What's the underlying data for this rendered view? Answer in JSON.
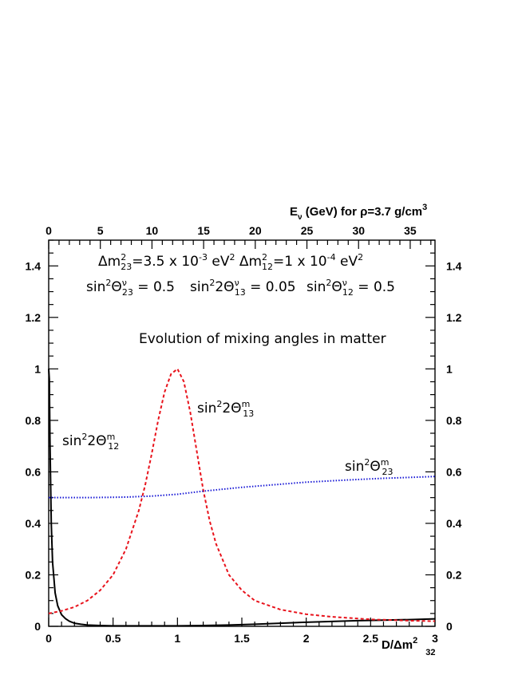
{
  "chart_data": {
    "type": "line",
    "xlabel": "D/Δm",
    "xlabel_sup": "2",
    "xlabel_sub": "32",
    "top_axis_label": "E",
    "top_axis_label_sub": "ν",
    "top_axis_label_rest": " (GeV) for ρ=3.7 g/cm",
    "top_axis_label_sup": "3",
    "xlim": [
      0,
      3
    ],
    "ylim": [
      0,
      1.5
    ],
    "top_xlim": [
      0,
      37.4
    ],
    "x_ticks": [
      "0",
      "0.5",
      "1",
      "1.5",
      "2",
      "2.5",
      "3"
    ],
    "y_ticks": [
      "0",
      "0.2",
      "0.4",
      "0.6",
      "0.8",
      "1",
      "1.2",
      "1.4"
    ],
    "top_ticks": [
      "0",
      "5",
      "10",
      "15",
      "20",
      "25",
      "30",
      "35"
    ],
    "grid": false,
    "annotations": {
      "params_line1": {
        "a": "Δm",
        "a_sup": "2",
        "a_sub": "23",
        "b": "=3.5 x 10",
        "b_sup": "-3",
        "c": " eV",
        "c_sup": "2",
        "d": " Δm",
        "d_sup": "2",
        "d_sub": "12",
        "e": "=1 x 10",
        "e_sup": "-4",
        "f": " eV",
        "f_sup": "2"
      },
      "params_line2": [
        {
          "pre": "sin",
          "sup": "2",
          "mid": "Θ",
          "msup": "ν",
          "msub": "23",
          "post": " = 0.5"
        },
        {
          "pre": "sin",
          "sup": "2",
          "mid": "2Θ",
          "msup": "ν",
          "msub": "13",
          "post": " = 0.05"
        },
        {
          "pre": "sin",
          "sup": "2",
          "mid": "Θ",
          "msup": "ν",
          "msub": "12",
          "post": " = 0.5"
        }
      ],
      "subtitle": "Evolution of mixing angles in matter"
    },
    "series": [
      {
        "name_pre": "sin",
        "name_sup": "2",
        "name_mid": "2Θ",
        "name_msup": "m",
        "name_msub": "12",
        "color": "#000000",
        "dash": "solid",
        "x": [
          0,
          0.005,
          0.01,
          0.02,
          0.03,
          0.05,
          0.07,
          0.1,
          0.13,
          0.16,
          0.2,
          0.25,
          0.3,
          0.4,
          0.5,
          0.6,
          0.8,
          1.0,
          1.2,
          1.4,
          1.6,
          1.8,
          2.0,
          2.2,
          2.4,
          2.6,
          2.8,
          3.0
        ],
        "values": [
          1.0,
          0.96,
          0.72,
          0.4,
          0.25,
          0.13,
          0.08,
          0.045,
          0.03,
          0.02,
          0.012,
          0.008,
          0.005,
          0.003,
          0.002,
          0.002,
          0.002,
          0.002,
          0.003,
          0.005,
          0.008,
          0.012,
          0.016,
          0.019,
          0.022,
          0.024,
          0.026,
          0.029
        ]
      },
      {
        "name_pre": "sin",
        "name_sup": "2",
        "name_mid": "2Θ",
        "name_msup": "m",
        "name_msub": "13",
        "color": "#e8131c",
        "dash": "dashed",
        "x": [
          0,
          0.1,
          0.2,
          0.3,
          0.4,
          0.5,
          0.6,
          0.7,
          0.75,
          0.8,
          0.85,
          0.9,
          0.95,
          1.0,
          1.05,
          1.1,
          1.15,
          1.2,
          1.25,
          1.3,
          1.4,
          1.5,
          1.6,
          1.8,
          2.0,
          2.2,
          2.5,
          2.8,
          3.0
        ],
        "values": [
          0.05,
          0.06,
          0.075,
          0.1,
          0.14,
          0.2,
          0.3,
          0.45,
          0.55,
          0.67,
          0.8,
          0.91,
          0.98,
          1.0,
          0.95,
          0.83,
          0.68,
          0.53,
          0.41,
          0.32,
          0.2,
          0.14,
          0.1,
          0.065,
          0.047,
          0.037,
          0.027,
          0.022,
          0.02
        ]
      },
      {
        "name_pre": "sin",
        "name_sup": "2",
        "name_mid": "Θ",
        "name_msup": "m",
        "name_msub": "23",
        "color": "#1b1bd6",
        "dash": "dotted",
        "x": [
          0,
          0.3,
          0.6,
          0.8,
          1.0,
          1.2,
          1.5,
          1.8,
          2.0,
          2.3,
          2.6,
          3.0
        ],
        "values": [
          0.5,
          0.5,
          0.502,
          0.506,
          0.513,
          0.525,
          0.54,
          0.552,
          0.56,
          0.568,
          0.575,
          0.582
        ]
      }
    ]
  }
}
